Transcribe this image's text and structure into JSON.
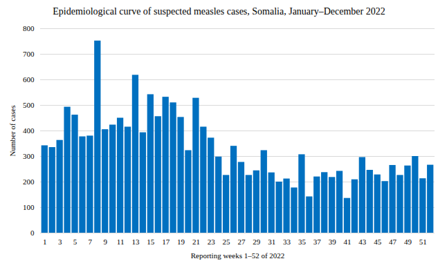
{
  "chart_data": {
    "type": "bar",
    "title": "Epidemiological curve of suspected measles cases, Somalia, January–December 2022",
    "x_label": "Reporting weeks 1–52 of 2022",
    "y_label": "Number of cases",
    "categories": [
      "1",
      null,
      "3",
      null,
      "5",
      null,
      "7",
      null,
      "9",
      null,
      "11",
      null,
      "13",
      null,
      "15",
      null,
      "17",
      null,
      "19",
      null,
      "21",
      null,
      "23",
      null,
      "25",
      null,
      "27",
      null,
      "29",
      null,
      "31",
      null,
      "33",
      null,
      "35",
      null,
      "37",
      null,
      "39",
      null,
      "41",
      null,
      "43",
      null,
      "45",
      null,
      "47",
      null,
      "49",
      null,
      "51",
      null
    ],
    "values": [
      342,
      335,
      363,
      493,
      462,
      377,
      380,
      752,
      405,
      423,
      450,
      415,
      618,
      393,
      542,
      456,
      532,
      510,
      453,
      323,
      528,
      415,
      372,
      298,
      226,
      340,
      277,
      226,
      244,
      323,
      236,
      200,
      212,
      177,
      307,
      142,
      220,
      237,
      218,
      242,
      136,
      209,
      296,
      246,
      228,
      202,
      265,
      226,
      263,
      300,
      213,
      266
    ],
    "color": "#0070c0",
    "ylim": [
      0,
      800
    ],
    "yticks": [
      0,
      100,
      200,
      300,
      400,
      500,
      600,
      700,
      800
    ],
    "grid": true
  }
}
